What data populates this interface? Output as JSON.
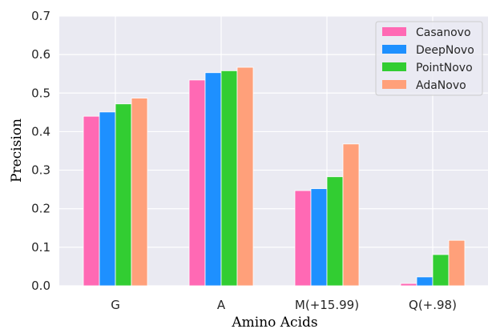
{
  "chart_data": {
    "type": "bar",
    "xlabel": "Amino Acids",
    "ylabel": "Precision",
    "categories": [
      "G",
      "A",
      "M(+15.99)",
      "Q(+.98)"
    ],
    "ylim": [
      0,
      0.7
    ],
    "yticks": [
      "0.0",
      "0.1",
      "0.2",
      "0.3",
      "0.4",
      "0.5",
      "0.6",
      "0.7"
    ],
    "grid": true,
    "legend_position": "top-right",
    "series": [
      {
        "name": "Casanovo",
        "color": "#ff69b4",
        "values": [
          0.44,
          0.534,
          0.247,
          0.006
        ]
      },
      {
        "name": "DeepNovo",
        "color": "#1e90ff",
        "values": [
          0.451,
          0.553,
          0.252,
          0.023
        ]
      },
      {
        "name": "PointNovo",
        "color": "#32cd32",
        "values": [
          0.472,
          0.558,
          0.283,
          0.081
        ]
      },
      {
        "name": "AdaNovo",
        "color": "#ffa07a",
        "values": [
          0.487,
          0.567,
          0.368,
          0.118
        ]
      }
    ]
  }
}
